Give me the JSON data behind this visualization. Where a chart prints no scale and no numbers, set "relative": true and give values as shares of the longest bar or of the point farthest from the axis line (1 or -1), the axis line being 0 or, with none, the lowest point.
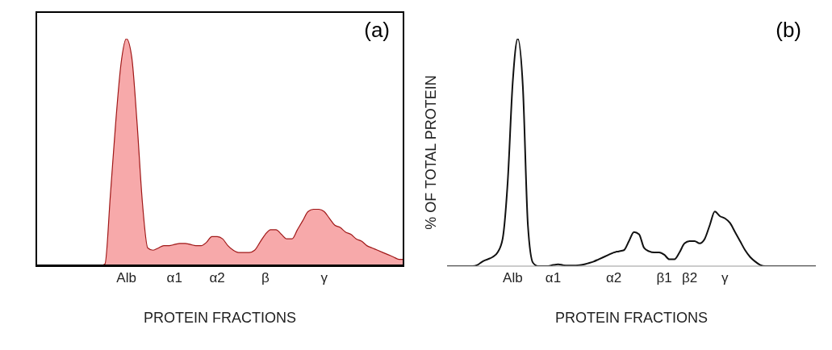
{
  "chart_data": [
    {
      "type": "area",
      "title": "(a)",
      "xlabel": "PROTEIN FRACTIONS",
      "relative": true,
      "categories": [
        null,
        null,
        null,
        null,
        null,
        null,
        null,
        null,
        null,
        null,
        null,
        null,
        null,
        null,
        null,
        null,
        null,
        "Alb",
        null,
        null,
        null,
        null,
        null,
        null,
        null,
        null,
        "α1",
        null,
        null,
        null,
        null,
        null,
        null,
        null,
        "α2",
        null,
        null,
        null,
        null,
        null,
        null,
        null,
        null,
        "β",
        null,
        null,
        null,
        null,
        null,
        null,
        null,
        null,
        null,
        null,
        "γ",
        null,
        null,
        null,
        null,
        null,
        null,
        null,
        null,
        null,
        null,
        null,
        null,
        null,
        null,
        null
      ],
      "series": [
        {
          "color": "#f7a9aa",
          "values": [
            0,
            0,
            0,
            0,
            0,
            0,
            0,
            0,
            0,
            0,
            0,
            0,
            0,
            0.01,
            0.31,
            0.63,
            0.89,
            1.0,
            0.92,
            0.63,
            0.28,
            0.08,
            0.07,
            0.08,
            0.09,
            0.09,
            0.095,
            0.1,
            0.1,
            0.095,
            0.09,
            0.09,
            0.105,
            0.13,
            0.13,
            0.12,
            0.09,
            0.07,
            0.06,
            0.06,
            0.06,
            0.07,
            0.105,
            0.14,
            0.16,
            0.16,
            0.14,
            0.12,
            0.12,
            0.16,
            0.2,
            0.24,
            0.25,
            0.25,
            0.24,
            0.21,
            0.18,
            0.17,
            0.15,
            0.14,
            0.12,
            0.11,
            0.09,
            0.08,
            0.07,
            0.06,
            0.05,
            0.04,
            0.03,
            0.03
          ]
        }
      ]
    },
    {
      "type": "line",
      "title": "(b)",
      "xlabel": "PROTEIN FRACTIONS",
      "ylabel": "% OF TOTAL PROTEIN",
      "relative": true,
      "categories": [
        null,
        null,
        null,
        null,
        null,
        null,
        null,
        null,
        null,
        null,
        null,
        null,
        null,
        "Alb",
        null,
        null,
        null,
        null,
        null,
        null,
        null,
        "α1",
        null,
        null,
        null,
        null,
        null,
        null,
        null,
        null,
        null,
        null,
        null,
        "α2",
        null,
        null,
        null,
        null,
        null,
        null,
        null,
        null,
        null,
        "β1",
        null,
        null,
        null,
        null,
        "β2",
        null,
        null,
        null,
        null,
        null,
        null,
        "γ",
        null,
        null,
        null,
        null,
        null,
        null,
        null,
        null,
        null,
        null,
        null,
        null,
        null,
        null,
        null,
        null,
        null,
        null
      ],
      "series": [
        {
          "color": "#111111",
          "values": [
            0,
            0,
            0,
            0,
            0,
            0,
            0.005,
            0.02,
            0.03,
            0.04,
            0.06,
            0.12,
            0.37,
            0.81,
            1.0,
            0.79,
            0.18,
            0.015,
            0,
            0,
            0,
            0.005,
            0.008,
            0.004,
            0.003,
            0.003,
            0.004,
            0.007,
            0.013,
            0.02,
            0.03,
            0.04,
            0.05,
            0.06,
            0.065,
            0.07,
            0.11,
            0.15,
            0.14,
            0.08,
            0.065,
            0.06,
            0.06,
            0.05,
            0.03,
            0.03,
            0.06,
            0.1,
            0.11,
            0.11,
            0.1,
            0.12,
            0.18,
            0.24,
            0.22,
            0.21,
            0.19,
            0.15,
            0.11,
            0.07,
            0.04,
            0.02,
            0.005,
            0,
            0,
            0,
            0,
            0,
            0,
            0,
            0,
            0,
            0,
            0
          ]
        }
      ]
    }
  ]
}
